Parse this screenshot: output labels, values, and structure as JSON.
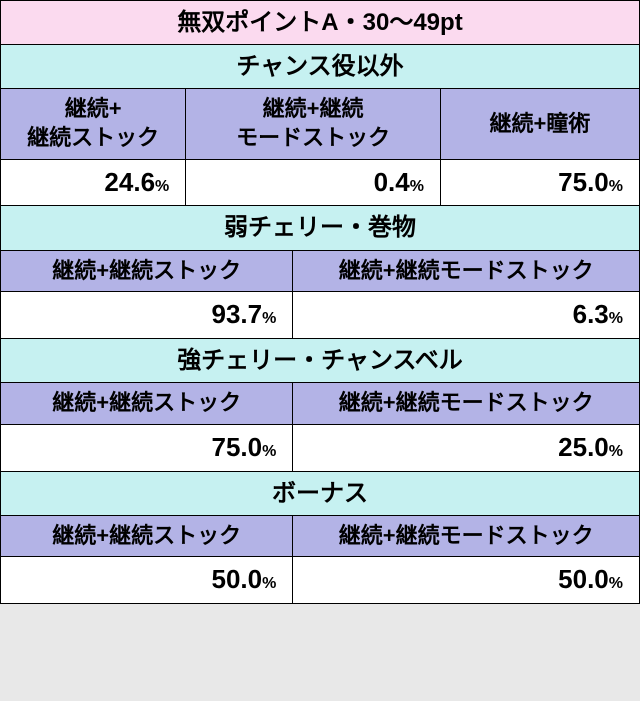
{
  "title": "無双ポイントA・30～49pt",
  "sections": [
    {
      "name": "チャンス役以外",
      "cols": 3,
      "headers": [
        "継続+\n継続ストック",
        "継続+継続\nモードストック",
        "継続+瞳術"
      ],
      "values": [
        "24.6",
        "0.4",
        "75.0"
      ]
    },
    {
      "name": "弱チェリー・巻物",
      "cols": 2,
      "headers": [
        "継続+継続ストック",
        "継続+継続モードストック"
      ],
      "values": [
        "93.7",
        "6.3"
      ]
    },
    {
      "name": "強チェリー・チャンスベル",
      "cols": 2,
      "headers": [
        "継続+継続ストック",
        "継続+継続モードストック"
      ],
      "values": [
        "75.0",
        "25.0"
      ]
    },
    {
      "name": "ボーナス",
      "cols": 2,
      "headers": [
        "継続+継続ストック",
        "継続+継続モードストック"
      ],
      "values": [
        "50.0",
        "50.0"
      ]
    }
  ],
  "pct_label": "%",
  "colors": {
    "title_bg": "#fbdaef",
    "section_bg": "#c6f1f1",
    "header_bg": "#b3b3e6",
    "data_bg": "#ffffff",
    "border": "#000000"
  }
}
